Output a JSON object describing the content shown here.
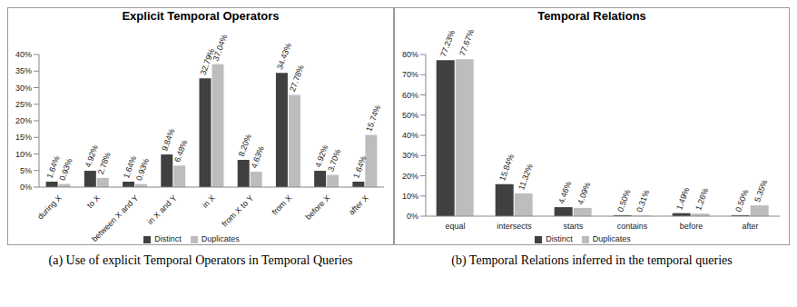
{
  "chart_data": [
    {
      "type": "bar",
      "title": "Explicit Temporal Operators",
      "caption": "(a) Use of explicit Temporal Operators in Temporal Queries",
      "categories": [
        "during X",
        "to X",
        "between X and Y",
        "in X and Y",
        "in X",
        "from X to Y",
        "from X",
        "before X",
        "after X"
      ],
      "series": [
        {
          "name": "Distinct",
          "color": "#404040",
          "values": [
            1.64,
            4.92,
            1.64,
            9.84,
            32.79,
            8.2,
            34.43,
            4.92,
            1.64
          ],
          "value_labels": [
            "1.64%",
            "4.92%",
            "1.64%",
            "9.84%",
            "32.79%",
            "8.20%",
            "34.43%",
            "4.92%",
            "1.64%"
          ]
        },
        {
          "name": "Duplicates",
          "color": "#bdbdbd",
          "values": [
            0.93,
            2.78,
            0.93,
            6.48,
            37.04,
            4.63,
            27.78,
            3.7,
            15.74
          ],
          "value_labels": [
            "0.93%",
            "2.78%",
            "0.93%",
            "6.48%",
            "37.04%",
            "4.63%",
            "27.78%",
            "3.70%",
            "15.74%"
          ]
        }
      ],
      "ylim": [
        0,
        40
      ],
      "yticks": [
        {
          "value": 0,
          "label": "0%"
        },
        {
          "value": 5,
          "label": "5%"
        },
        {
          "value": 10,
          "label": "10%"
        },
        {
          "value": 15,
          "label": "15%"
        },
        {
          "value": 20,
          "label": "20%"
        },
        {
          "value": 25,
          "label": "25%"
        },
        {
          "value": 30,
          "label": "30%"
        },
        {
          "value": 35,
          "label": "35%"
        },
        {
          "value": 40,
          "label": "40%"
        }
      ],
      "grid": false,
      "legend": "bottom",
      "data_labels": true
    },
    {
      "type": "bar",
      "title": "Temporal Relations",
      "caption": "(b) Temporal Relations inferred in the temporal queries",
      "categories": [
        "equal",
        "intersects",
        "starts",
        "contains",
        "before",
        "after"
      ],
      "series": [
        {
          "name": "Distinct",
          "color": "#404040",
          "values": [
            77.23,
            15.84,
            4.46,
            0.5,
            1.49,
            0.5
          ],
          "value_labels": [
            "77.23%",
            "15.84%",
            "4.46%",
            "0.50%",
            "1.49%",
            "0.50%"
          ]
        },
        {
          "name": "Duplicates",
          "color": "#bdbdbd",
          "values": [
            77.67,
            11.32,
            4.09,
            0.31,
            1.26,
            5.35
          ],
          "value_labels": [
            "77.67%",
            "11.32%",
            "4.09%",
            "0.31%",
            "1.26%",
            "5.35%"
          ]
        }
      ],
      "ylim": [
        0,
        80
      ],
      "yticks": [
        {
          "value": 0,
          "label": "0%"
        },
        {
          "value": 10,
          "label": "10%"
        },
        {
          "value": 20,
          "label": "20%"
        },
        {
          "value": 30,
          "label": "30%"
        },
        {
          "value": 40,
          "label": "40%"
        },
        {
          "value": 50,
          "label": "50%"
        },
        {
          "value": 60,
          "label": "60%"
        },
        {
          "value": 70,
          "label": "70%"
        },
        {
          "value": 80,
          "label": "80%"
        }
      ],
      "grid": false,
      "legend": "bottom",
      "data_labels": true
    }
  ]
}
